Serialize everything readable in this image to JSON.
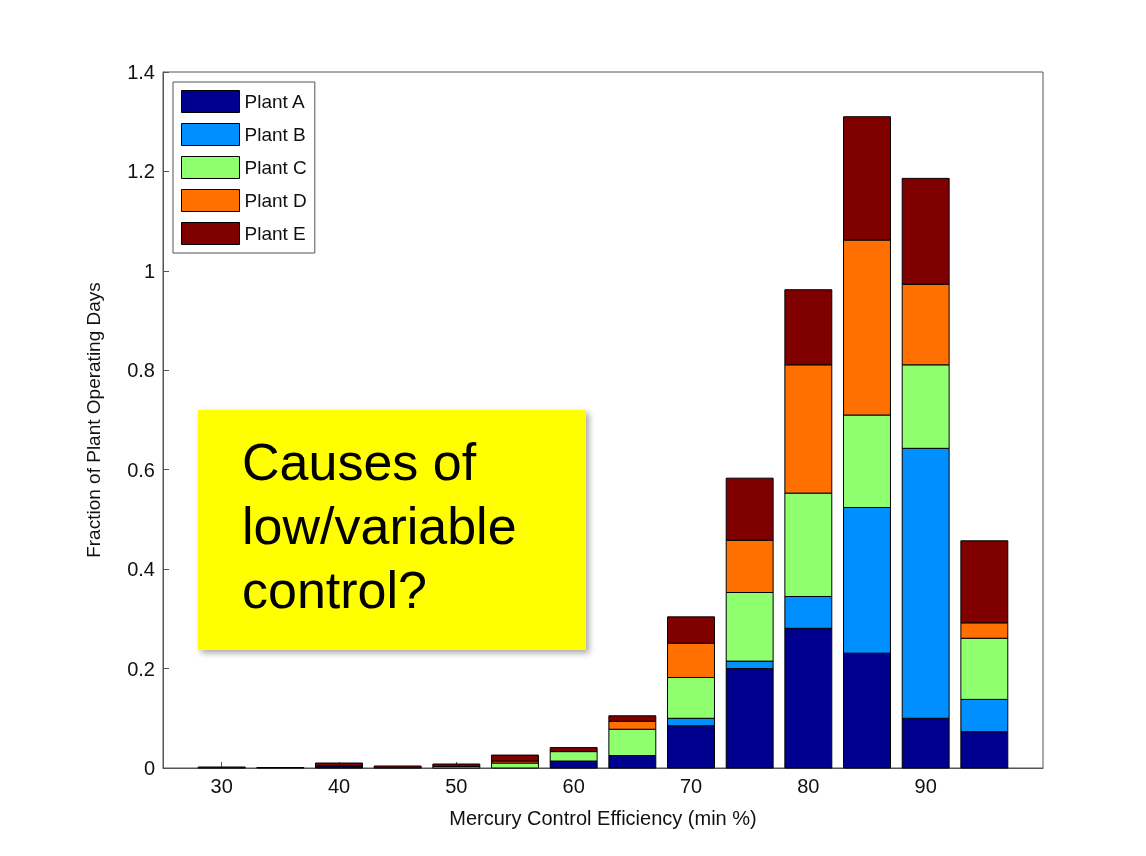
{
  "chart_data": {
    "type": "bar",
    "stacked": true,
    "xlabel": "Mercury Control Efficiency (min %)",
    "ylabel": "Fraction of Plant Operating Days",
    "x": [
      30,
      35,
      40,
      45,
      50,
      55,
      60,
      65,
      70,
      75,
      80,
      85,
      90,
      95
    ],
    "xlim": [
      25,
      100
    ],
    "xticks": [
      30,
      40,
      50,
      60,
      70,
      80,
      90
    ],
    "ylim": [
      0,
      1.4
    ],
    "yticks": [
      0,
      0.2,
      0.4,
      0.6,
      0.8,
      1,
      1.2,
      1.4
    ],
    "grid": false,
    "legend": "top left",
    "annotations": [
      "Causes of low/variable control?"
    ],
    "series": [
      {
        "name": "Plant A",
        "color": "#00008f",
        "values": [
          0,
          0,
          0.004,
          0,
          0,
          0,
          0.014,
          0.025,
          0.085,
          0.2,
          0.281,
          0.231,
          0.1,
          0.073
        ]
      },
      {
        "name": "Plant B",
        "color": "#008fff",
        "values": [
          0,
          0,
          0,
          0,
          0,
          0,
          0,
          0,
          0.015,
          0.015,
          0.064,
          0.293,
          0.543,
          0.065
        ]
      },
      {
        "name": "Plant C",
        "color": "#8fff70",
        "values": [
          0,
          0,
          0,
          0,
          0.003,
          0.01,
          0.019,
          0.053,
          0.082,
          0.138,
          0.208,
          0.186,
          0.168,
          0.123
        ]
      },
      {
        "name": "Plant D",
        "color": "#ff7000",
        "values": [
          0,
          0,
          0,
          0,
          0,
          0.004,
          0,
          0.016,
          0.069,
          0.105,
          0.258,
          0.352,
          0.162,
          0.031
        ]
      },
      {
        "name": "Plant E",
        "color": "#800000",
        "values": [
          0.002,
          0.001,
          0.006,
          0.004,
          0.005,
          0.012,
          0.008,
          0.011,
          0.053,
          0.125,
          0.151,
          0.248,
          0.213,
          0.165
        ]
      }
    ]
  }
}
